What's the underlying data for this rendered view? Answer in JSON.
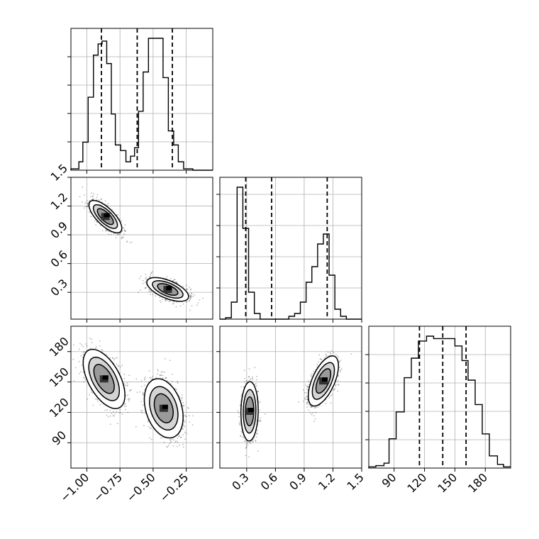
{
  "chart_data": {
    "type": "corner",
    "grid": true,
    "parameters": [
      {
        "range": [
          -1.12,
          -0.05
        ],
        "ticks": [
          -1.0,
          -0.75,
          -0.5,
          -0.25
        ],
        "tick_labels": [
          "−1.00",
          "−0.75",
          "−0.50",
          "−0.25"
        ],
        "quantiles": [
          -0.89,
          -0.62,
          -0.355
        ],
        "hist": {
          "edges": [
            -1.12,
            -1.06,
            -1.03,
            -0.99,
            -0.95,
            -0.915,
            -0.885,
            -0.85,
            -0.815,
            -0.785,
            -0.745,
            -0.705,
            -0.67,
            -0.64,
            -0.61,
            -0.575,
            -0.535,
            -0.495,
            -0.46,
            -0.425,
            -0.385,
            -0.345,
            -0.31,
            -0.27,
            -0.235,
            -0.2,
            -0.16,
            -0.125,
            -0.05
          ],
          "counts": [
            0.5,
            3,
            10,
            26,
            41,
            45,
            46,
            38,
            20,
            9,
            7,
            3,
            5,
            8,
            21,
            35,
            47,
            47,
            47,
            33,
            14,
            9,
            3,
            0.5,
            0.5,
            0,
            0,
            0
          ]
        }
      },
      {
        "range": [
          0.02,
          1.5
        ],
        "ticks": [
          0.3,
          0.6,
          0.9,
          1.2,
          1.5
        ],
        "tick_labels": [
          "0.3",
          "0.6",
          "0.9",
          "1.2",
          "1.5"
        ],
        "quantiles": [
          0.29,
          0.56,
          1.14
        ],
        "hist": {
          "edges": [
            0.02,
            0.08,
            0.14,
            0.2,
            0.26,
            0.32,
            0.38,
            0.44,
            0.5,
            0.56,
            0.62,
            0.68,
            0.74,
            0.8,
            0.86,
            0.92,
            0.98,
            1.04,
            1.1,
            1.16,
            1.22,
            1.28,
            1.34,
            1.4,
            1.5
          ],
          "counts": [
            0,
            1,
            12,
            93,
            64,
            19,
            4,
            0,
            0,
            0,
            0,
            0,
            2,
            4,
            12,
            26,
            37,
            53,
            60,
            31,
            7,
            2,
            0,
            0
          ]
        }
      },
      {
        "range": [
          65,
          205
        ],
        "ticks": [
          90,
          120,
          150,
          180
        ],
        "tick_labels": [
          "90",
          "120",
          "150",
          "180"
        ],
        "quantiles": [
          115,
          138,
          161
        ],
        "hist": {
          "edges": [
            65,
            72,
            80,
            85,
            92,
            100,
            107,
            114,
            122,
            129,
            136,
            143,
            150,
            157,
            163,
            170,
            177,
            184,
            192,
            198,
            205
          ],
          "counts": [
            0.5,
            1,
            2,
            12,
            23,
            37,
            45,
            52,
            54,
            53,
            53,
            53,
            50,
            44,
            36,
            26,
            14,
            5,
            1.5,
            0.5
          ]
        }
      }
    ],
    "pairs": [
      {
        "x_param": 0,
        "y_param": 1,
        "modes": [
          {
            "center": [
              -0.86,
              1.09
            ],
            "sd": [
              0.055,
              0.075
            ],
            "rho": -0.72
          },
          {
            "center": [
              -0.39,
              0.33
            ],
            "sd": [
              0.07,
              0.055
            ],
            "rho": -0.6
          }
        ]
      },
      {
        "x_param": 0,
        "y_param": 2,
        "modes": [
          {
            "center": [
              -0.87,
              153
            ],
            "sd": [
              0.07,
              13
            ],
            "rho": -0.55
          },
          {
            "center": [
              -0.42,
              124
            ],
            "sd": [
              0.065,
              13
            ],
            "rho": -0.3
          }
        ]
      },
      {
        "x_param": 1,
        "y_param": 2,
        "modes": [
          {
            "center": [
              0.33,
              121
            ],
            "sd": [
              0.04,
              13
            ],
            "rho": 0.05
          },
          {
            "center": [
              1.1,
              151
            ],
            "sd": [
              0.07,
              11
            ],
            "rho": 0.6
          }
        ]
      }
    ]
  }
}
